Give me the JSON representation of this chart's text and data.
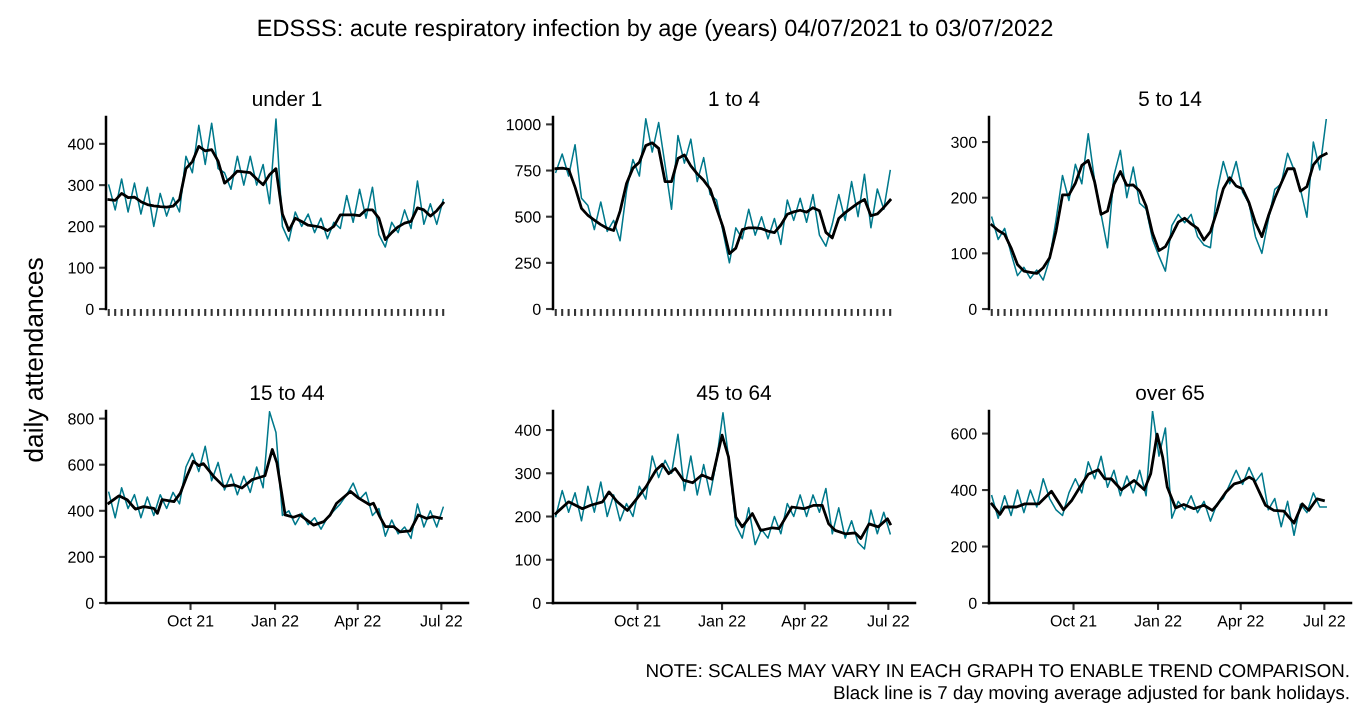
{
  "chart_data": [
    {
      "type": "other",
      "title": "EDSSS: acute respiratory infection by age (years) 04/07/2021 to 03/07/2022",
      "ylabel": "daily attendances",
      "annotations": [
        "NOTE: SCALES MAY VARY IN EACH GRAPH TO ENABLE TREND COMPARISON.",
        "Black line is 7 day moving average adjusted for bank holidays."
      ]
    },
    {
      "type": "line",
      "title": "under 1",
      "categories": [
        null,
        null,
        null,
        null,
        null,
        null,
        null,
        null,
        null,
        null,
        null,
        null,
        null,
        null,
        null,
        null,
        null,
        null,
        null,
        null,
        null,
        null,
        null,
        null,
        null,
        null,
        null,
        null,
        null,
        null,
        null,
        null,
        null,
        null,
        null,
        null,
        null,
        null,
        null,
        null,
        null,
        null,
        null,
        null,
        null,
        null,
        null,
        null,
        null,
        null,
        null,
        null,
        null
      ],
      "ylim": [
        0,
        465
      ],
      "yticks": [
        0,
        100,
        200,
        300,
        400
      ],
      "tick_labels": "y",
      "series": [
        {
          "color": "#00798c",
          "values": [
            300,
            240,
            315,
            235,
            305,
            230,
            295,
            200,
            280,
            225,
            270,
            235,
            370,
            330,
            445,
            350,
            450,
            340,
            330,
            290,
            370,
            300,
            370,
            300,
            350,
            255,
            460,
            200,
            165,
            235,
            200,
            230,
            185,
            220,
            170,
            210,
            195,
            275,
            210,
            290,
            220,
            295,
            180,
            150,
            210,
            185,
            240,
            195,
            310,
            205,
            255,
            205,
            265
          ]
        },
        {
          "color": "#000000",
          "values": [
            265,
            263,
            280,
            270,
            271,
            260,
            253,
            250,
            248,
            247,
            249,
            265,
            340,
            357,
            394,
            383,
            386,
            358,
            305,
            318,
            334,
            332,
            330,
            315,
            301,
            325,
            340,
            230,
            190,
            220,
            212,
            203,
            201,
            198,
            190,
            200,
            228,
            228,
            228,
            226,
            240,
            240,
            220,
            168,
            185,
            199,
            208,
            212,
            245,
            240,
            225,
            238,
            257
          ]
        }
      ]
    },
    {
      "type": "line",
      "title": "1 to 4",
      "categories": [
        null,
        null,
        null,
        null,
        null,
        null,
        null,
        null,
        null,
        null,
        null,
        null,
        null,
        null,
        null,
        null,
        null,
        null,
        null,
        null,
        null,
        null,
        null,
        null,
        null,
        null,
        null,
        null,
        null,
        null,
        null,
        null,
        null,
        null,
        null,
        null,
        null,
        null,
        null,
        null,
        null,
        null,
        null,
        null,
        null,
        null,
        null,
        null,
        null,
        null,
        null,
        null,
        null
      ],
      "ylim": [
        0,
        1040
      ],
      "yticks": [
        0,
        250,
        500,
        750,
        1000
      ],
      "tick_labels": "y",
      "series": [
        {
          "color": "#00798c",
          "values": [
            740,
            840,
            720,
            890,
            600,
            560,
            430,
            580,
            420,
            480,
            370,
            640,
            810,
            720,
            1030,
            850,
            1010,
            780,
            540,
            940,
            790,
            920,
            690,
            820,
            620,
            590,
            420,
            250,
            440,
            380,
            540,
            400,
            500,
            380,
            490,
            350,
            590,
            480,
            600,
            470,
            620,
            400,
            340,
            460,
            620,
            480,
            690,
            500,
            730,
            440,
            650,
            540,
            750
          ]
        },
        {
          "color": "#000000",
          "values": [
            760,
            763,
            757,
            660,
            545,
            507,
            482,
            457,
            437,
            425,
            530,
            680,
            763,
            795,
            885,
            900,
            870,
            690,
            690,
            815,
            835,
            775,
            732,
            697,
            650,
            545,
            445,
            300,
            330,
            430,
            440,
            440,
            435,
            422,
            414,
            455,
            513,
            526,
            535,
            525,
            549,
            532,
            415,
            385,
            490,
            522,
            548,
            573,
            594,
            505,
            515,
            550,
            590
          ]
        }
      ]
    },
    {
      "type": "line",
      "title": "5 to 14",
      "categories": [
        null,
        null,
        null,
        null,
        null,
        null,
        null,
        null,
        null,
        null,
        null,
        null,
        null,
        null,
        null,
        null,
        null,
        null,
        null,
        null,
        null,
        null,
        null,
        null,
        null,
        null,
        null,
        null,
        null,
        null,
        null,
        null,
        null,
        null,
        null,
        null,
        null,
        null,
        null,
        null,
        null,
        null,
        null,
        null,
        null,
        null,
        null,
        null,
        null,
        null,
        null,
        null,
        null
      ],
      "ylim": [
        0,
        345
      ],
      "yticks": [
        0,
        100,
        200,
        300
      ],
      "tick_labels": "y",
      "series": [
        {
          "color": "#00798c",
          "values": [
            165,
            125,
            145,
            100,
            60,
            75,
            55,
            70,
            52,
            90,
            160,
            240,
            195,
            260,
            225,
            315,
            230,
            170,
            110,
            240,
            285,
            200,
            255,
            190,
            180,
            125,
            95,
            68,
            150,
            170,
            155,
            170,
            130,
            115,
            110,
            210,
            265,
            225,
            265,
            210,
            190,
            130,
            100,
            160,
            215,
            225,
            280,
            250,
            215,
            165,
            300,
            250,
            340
          ]
        },
        {
          "color": "#000000",
          "values": [
            151,
            141,
            134,
            110,
            80,
            68,
            66,
            64,
            74,
            92,
            140,
            205,
            205,
            226,
            258,
            267,
            228,
            170,
            176,
            224,
            247,
            222,
            223,
            212,
            185,
            136,
            105,
            112,
            133,
            156,
            163,
            153,
            145,
            124,
            139,
            175,
            216,
            236,
            221,
            216,
            191,
            155,
            130,
            167,
            199,
            226,
            252,
            252,
            212,
            220,
            259,
            273,
            279
          ]
        }
      ]
    },
    {
      "type": "line",
      "title": "15 to 44",
      "xlim": [
        "2021-07-01",
        "2022-07-30"
      ],
      "xticks": [
        {
          "value": "2021-10-01",
          "label": "Oct 21"
        },
        {
          "value": "2022-01-01",
          "label": "Jan 22"
        },
        {
          "value": "2022-04-01",
          "label": "Apr 22"
        },
        {
          "value": "2022-07-01",
          "label": "Jul 22"
        }
      ],
      "ylim": [
        0,
        833
      ],
      "yticks": [
        0,
        200,
        400,
        600,
        800
      ],
      "series": [
        {
          "color": "#00798c",
          "x": [
            "2021-07-04",
            "2021-07-11",
            "2021-07-18",
            "2021-07-25",
            "2021-08-01",
            "2021-08-08",
            "2021-08-15",
            "2021-08-22",
            "2021-08-29",
            "2021-09-05",
            "2021-09-12",
            "2021-09-19",
            "2021-09-26",
            "2021-10-03",
            "2021-10-10",
            "2021-10-17",
            "2021-10-24",
            "2021-10-31",
            "2021-11-07",
            "2021-11-14",
            "2021-11-21",
            "2021-11-28",
            "2021-12-05",
            "2021-12-12",
            "2021-12-19",
            "2021-12-26",
            "2022-01-02",
            "2022-01-09",
            "2022-01-16",
            "2022-01-23",
            "2022-01-30",
            "2022-02-06",
            "2022-02-13",
            "2022-02-20",
            "2022-02-27",
            "2022-03-06",
            "2022-03-13",
            "2022-03-20",
            "2022-03-27",
            "2022-04-03",
            "2022-04-10",
            "2022-04-17",
            "2022-04-24",
            "2022-05-01",
            "2022-05-08",
            "2022-05-15",
            "2022-05-22",
            "2022-05-29",
            "2022-06-05",
            "2022-06-12",
            "2022-06-19",
            "2022-06-26",
            "2022-07-03"
          ],
          "values": [
            480,
            370,
            500,
            410,
            470,
            370,
            460,
            380,
            470,
            410,
            480,
            430,
            590,
            650,
            570,
            680,
            530,
            610,
            490,
            560,
            470,
            550,
            480,
            590,
            500,
            830,
            740,
            380,
            400,
            340,
            390,
            340,
            370,
            320,
            370,
            400,
            430,
            470,
            520,
            450,
            480,
            380,
            410,
            290,
            360,
            300,
            330,
            280,
            430,
            330,
            400,
            330,
            415
          ]
        },
        {
          "color": "#000000",
          "x": [
            "2021-07-04",
            "2021-07-15",
            "2021-07-24",
            "2021-08-02",
            "2021-08-11",
            "2021-08-22",
            "2021-08-26",
            "2021-08-31",
            "2021-09-13",
            "2021-09-20",
            "2021-09-27",
            "2021-10-04",
            "2021-10-10",
            "2021-10-15",
            "2021-10-26",
            "2021-11-06",
            "2021-11-17",
            "2021-11-26",
            "2021-12-07",
            "2021-12-21",
            "2021-12-29",
            "2022-01-03",
            "2022-01-12",
            "2022-01-21",
            "2022-01-28",
            "2022-02-12",
            "2022-02-23",
            "2022-03-02",
            "2022-03-09",
            "2022-03-24",
            "2022-04-02",
            "2022-04-14",
            "2022-04-18",
            "2022-04-25",
            "2022-05-01",
            "2022-05-10",
            "2022-05-17",
            "2022-05-28",
            "2022-06-06",
            "2022-06-15",
            "2022-06-22",
            "2022-07-01"
          ],
          "values": [
            433,
            465,
            448,
            407,
            418,
            411,
            389,
            448,
            440,
            477,
            550,
            615,
            596,
            605,
            550,
            506,
            513,
            499,
            535,
            552,
            666,
            608,
            382,
            372,
            382,
            338,
            353,
            382,
            433,
            484,
            455,
            426,
            433,
            375,
            331,
            331,
            309,
            313,
            382,
            367,
            375,
            367
          ]
        }
      ]
    },
    {
      "type": "line",
      "title": "45 to 64",
      "xlim": [
        "2021-07-01",
        "2022-07-30"
      ],
      "xticks": [
        {
          "value": "2021-10-01",
          "label": "Oct 21"
        },
        {
          "value": "2022-01-01",
          "label": "Jan 22"
        },
        {
          "value": "2022-04-01",
          "label": "Apr 22"
        },
        {
          "value": "2022-07-01",
          "label": "Jul 22"
        }
      ],
      "ylim": [
        0,
        444
      ],
      "yticks": [
        0,
        100,
        200,
        300,
        400
      ],
      "series": [
        {
          "color": "#00798c",
          "x": [
            "2021-07-04",
            "2021-07-11",
            "2021-07-18",
            "2021-07-25",
            "2021-08-01",
            "2021-08-08",
            "2021-08-15",
            "2021-08-22",
            "2021-08-29",
            "2021-09-05",
            "2021-09-12",
            "2021-09-19",
            "2021-09-26",
            "2021-10-03",
            "2021-10-10",
            "2021-10-17",
            "2021-10-24",
            "2021-10-31",
            "2021-11-07",
            "2021-11-14",
            "2021-11-21",
            "2021-11-28",
            "2021-12-05",
            "2021-12-12",
            "2021-12-19",
            "2021-12-26",
            "2022-01-02",
            "2022-01-09",
            "2022-01-16",
            "2022-01-23",
            "2022-01-30",
            "2022-02-06",
            "2022-02-13",
            "2022-02-20",
            "2022-02-27",
            "2022-03-06",
            "2022-03-13",
            "2022-03-20",
            "2022-03-27",
            "2022-04-03",
            "2022-04-10",
            "2022-04-17",
            "2022-04-24",
            "2022-05-01",
            "2022-05-08",
            "2022-05-15",
            "2022-05-22",
            "2022-05-29",
            "2022-06-05",
            "2022-06-12",
            "2022-06-19",
            "2022-06-26",
            "2022-07-03"
          ],
          "values": [
            200,
            260,
            210,
            255,
            190,
            270,
            210,
            280,
            200,
            250,
            190,
            230,
            200,
            270,
            240,
            340,
            290,
            330,
            300,
            390,
            260,
            340,
            250,
            320,
            250,
            330,
            440,
            320,
            180,
            150,
            220,
            135,
            170,
            150,
            200,
            160,
            230,
            200,
            250,
            200,
            250,
            210,
            265,
            160,
            220,
            150,
            190,
            140,
            125,
            215,
            160,
            210,
            160
          ]
        },
        {
          "color": "#000000",
          "x": [
            "2021-07-04",
            "2021-07-18",
            "2021-08-02",
            "2021-08-11",
            "2021-08-24",
            "2021-08-31",
            "2021-09-09",
            "2021-09-20",
            "2021-09-29",
            "2021-10-10",
            "2021-10-21",
            "2021-10-28",
            "2021-11-04",
            "2021-11-11",
            "2021-11-20",
            "2021-11-30",
            "2021-12-10",
            "2021-12-21",
            "2022-01-01",
            "2022-01-08",
            "2022-01-16",
            "2022-01-23",
            "2022-02-03",
            "2022-02-12",
            "2022-02-25",
            "2022-03-04",
            "2022-03-18",
            "2022-03-31",
            "2022-04-11",
            "2022-04-20",
            "2022-04-27",
            "2022-05-04",
            "2022-05-15",
            "2022-05-26",
            "2022-06-01",
            "2022-06-10",
            "2022-06-20",
            "2022-06-30",
            "2022-07-03"
          ],
          "values": [
            207,
            234,
            218,
            226,
            234,
            257,
            234,
            214,
            238,
            268,
            307,
            321,
            299,
            311,
            284,
            278,
            296,
            286,
            388,
            338,
            199,
            176,
            207,
            168,
            174,
            172,
            222,
            218,
            226,
            226,
            183,
            168,
            160,
            162,
            149,
            183,
            176,
            195,
            183
          ]
        }
      ]
    },
    {
      "type": "line",
      "title": "over 65",
      "xlim": [
        "2021-07-01",
        "2022-07-30"
      ],
      "xticks": [
        {
          "value": "2021-10-01",
          "label": "Oct 21"
        },
        {
          "value": "2022-01-01",
          "label": "Jan 22"
        },
        {
          "value": "2022-04-01",
          "label": "Apr 22"
        },
        {
          "value": "2022-07-01",
          "label": "Jul 22"
        }
      ],
      "ylim": [
        0,
        680
      ],
      "yticks": [
        0,
        200,
        400,
        600
      ],
      "series": [
        {
          "color": "#00798c",
          "x": [
            "2021-07-04",
            "2021-07-11",
            "2021-07-18",
            "2021-07-25",
            "2021-08-01",
            "2021-08-08",
            "2021-08-15",
            "2021-08-22",
            "2021-08-29",
            "2021-09-05",
            "2021-09-12",
            "2021-09-19",
            "2021-09-26",
            "2021-10-03",
            "2021-10-10",
            "2021-10-17",
            "2021-10-24",
            "2021-10-31",
            "2021-11-07",
            "2021-11-14",
            "2021-11-21",
            "2021-11-28",
            "2021-12-05",
            "2021-12-12",
            "2021-12-19",
            "2021-12-26",
            "2022-01-02",
            "2022-01-09",
            "2022-01-16",
            "2022-01-23",
            "2022-01-30",
            "2022-02-06",
            "2022-02-13",
            "2022-02-20",
            "2022-02-27",
            "2022-03-06",
            "2022-03-13",
            "2022-03-20",
            "2022-03-27",
            "2022-04-03",
            "2022-04-10",
            "2022-04-17",
            "2022-04-24",
            "2022-05-01",
            "2022-05-08",
            "2022-05-15",
            "2022-05-22",
            "2022-05-29",
            "2022-06-05",
            "2022-06-12",
            "2022-06-19",
            "2022-06-26",
            "2022-07-03"
          ],
          "values": [
            380,
            300,
            380,
            310,
            400,
            320,
            400,
            340,
            440,
            370,
            330,
            310,
            390,
            440,
            390,
            500,
            440,
            520,
            410,
            470,
            380,
            450,
            390,
            470,
            380,
            680,
            520,
            620,
            300,
            360,
            330,
            380,
            320,
            360,
            290,
            350,
            370,
            420,
            470,
            420,
            480,
            430,
            460,
            330,
            370,
            270,
            360,
            240,
            350,
            320,
            390,
            340,
            340
          ]
        },
        {
          "color": "#000000",
          "x": [
            "2021-07-04",
            "2021-07-13",
            "2021-07-18",
            "2021-07-31",
            "2021-08-09",
            "2021-08-24",
            "2021-09-07",
            "2021-09-20",
            "2021-09-29",
            "2021-10-08",
            "2021-10-17",
            "2021-10-28",
            "2021-11-04",
            "2021-11-11",
            "2021-11-22",
            "2021-12-06",
            "2021-12-17",
            "2021-12-24",
            "2021-12-31",
            "2022-01-06",
            "2022-01-11",
            "2022-01-20",
            "2022-01-29",
            "2022-02-09",
            "2022-02-20",
            "2022-03-01",
            "2022-03-06",
            "2022-03-16",
            "2022-03-25",
            "2022-04-01",
            "2022-04-10",
            "2022-04-15",
            "2022-04-28",
            "2022-05-07",
            "2022-05-18",
            "2022-05-29",
            "2022-06-07",
            "2022-06-14",
            "2022-06-23",
            "2022-06-30"
          ],
          "values": [
            351,
            314,
            340,
            340,
            351,
            351,
            396,
            330,
            363,
            411,
            456,
            472,
            440,
            440,
            401,
            434,
            401,
            458,
            598,
            517,
            411,
            337,
            349,
            334,
            346,
            328,
            346,
            393,
            422,
            428,
            446,
            437,
            346,
            328,
            325,
            283,
            351,
            328,
            369,
            363
          ]
        }
      ]
    }
  ]
}
